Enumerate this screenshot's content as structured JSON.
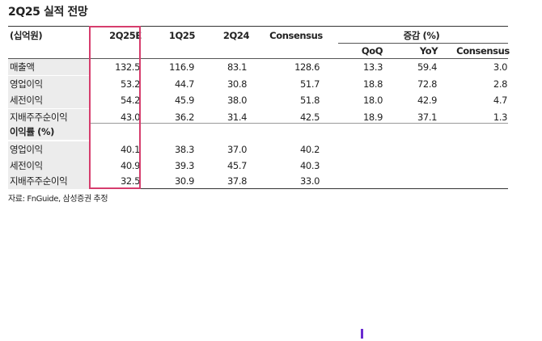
{
  "title": "2Q25 실적 전망",
  "table": {
    "unit": "(십억원)",
    "columns": [
      "2Q25E",
      "1Q25",
      "2Q24",
      "Consensus"
    ],
    "change_group": "증감 (%)",
    "change_columns": [
      "QoQ",
      "YoY",
      "Consensus"
    ],
    "rows": [
      [
        "매출액",
        "132.5",
        "116.9",
        "83.1",
        "128.6",
        "13.3",
        "59.4",
        "3.0"
      ],
      [
        "영업이익",
        "53.2",
        "44.7",
        "30.8",
        "51.7",
        "18.8",
        "72.8",
        "2.8"
      ],
      [
        "세전이익",
        "54.2",
        "45.9",
        "38.0",
        "51.8",
        "18.0",
        "42.9",
        "4.7"
      ],
      [
        "지배주주순이익",
        "43.0",
        "36.2",
        "31.4",
        "42.5",
        "18.9",
        "37.1",
        "1.3"
      ]
    ],
    "margin_section": "이익률 (%)",
    "margin_rows": [
      [
        "영업이익",
        "40.1",
        "38.3",
        "37.0",
        "40.2"
      ],
      [
        "세전이익",
        "40.9",
        "39.3",
        "45.7",
        "40.3"
      ],
      [
        "지배주주순이익",
        "32.5",
        "30.9",
        "37.8",
        "33.0"
      ]
    ]
  },
  "source": "자료: FnGuide, 삼성증권 추정"
}
